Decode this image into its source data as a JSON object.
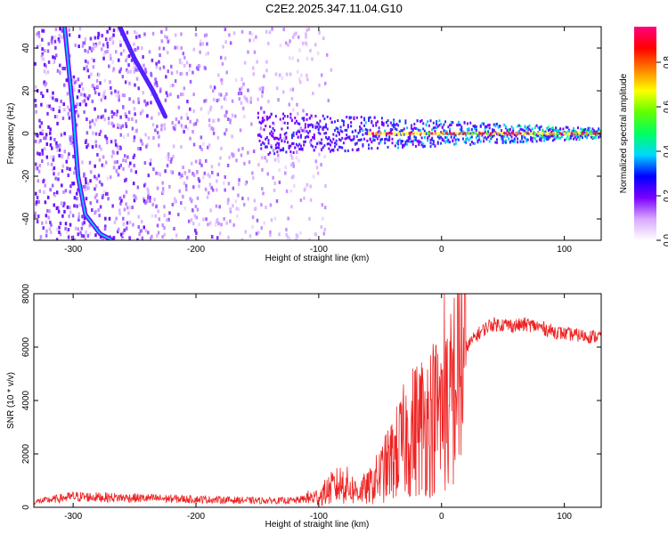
{
  "title": "C2E2.2025.347.11.04.G10",
  "chart_data": [
    {
      "type": "heatmap",
      "name": "spectrogram",
      "xlabel": "Height of straight line (km)",
      "ylabel": "Frequency (Hz)",
      "xlim": [
        -332,
        130
      ],
      "ylim": [
        -50,
        50
      ],
      "xticks": [
        -300,
        -200,
        -100,
        0,
        100
      ],
      "yticks": [
        -40,
        -20,
        0,
        20,
        40
      ],
      "features": [
        {
          "name": "scatter-cloud",
          "x_range": [
            -332,
            -100
          ],
          "y_range": [
            -50,
            50
          ],
          "description": "diffuse purple speckle"
        },
        {
          "name": "steep-track",
          "points": [
            [
              -307,
              50
            ],
            [
              -300,
              10
            ],
            [
              -296,
              -20
            ],
            [
              -290,
              -38
            ],
            [
              -278,
              -47
            ],
            [
              -268,
              -50
            ]
          ]
        },
        {
          "name": "diagonal-track",
          "points": [
            [
              -262,
              50
            ],
            [
              -250,
              35
            ],
            [
              -235,
              20
            ],
            [
              -225,
              8
            ]
          ]
        },
        {
          "name": "central-band",
          "x_range": [
            -150,
            130
          ],
          "frequency": 0
        }
      ]
    },
    {
      "type": "line",
      "name": "snr",
      "xlabel": "Height of straight line (km)",
      "ylabel": "SNR (10 * v/v)",
      "xlim": [
        -332,
        130
      ],
      "ylim": [
        0,
        8000
      ],
      "xticks": [
        -300,
        -200,
        -100,
        0,
        100
      ],
      "yticks": [
        0,
        2000,
        4000,
        6000,
        8000
      ],
      "series": [
        {
          "name": "SNR",
          "color": "#ee2222",
          "x": [
            -332,
            -300,
            -250,
            -200,
            -150,
            -120,
            -100,
            -90,
            -80,
            -70,
            -60,
            -50,
            -40,
            -30,
            -20,
            -10,
            0,
            5,
            10,
            15,
            20,
            30,
            40,
            50,
            60,
            70,
            80,
            90,
            100,
            110,
            120,
            130
          ],
          "y": [
            200,
            400,
            350,
            300,
            250,
            250,
            400,
            700,
            900,
            600,
            700,
            1200,
            1800,
            2500,
            3000,
            3300,
            3600,
            3800,
            4500,
            5500,
            6000,
            6500,
            6850,
            6850,
            6800,
            6850,
            6750,
            6600,
            6500,
            6450,
            6400,
            6400
          ]
        }
      ]
    }
  ],
  "colorbar": {
    "label": "Normalized spectral amplitude",
    "ticks": [
      "0.0",
      "0.2",
      "0.4",
      "0.6",
      "0.8"
    ],
    "colors": [
      "#ffffff",
      "#d8a8ff",
      "#7a00ff",
      "#0000ff",
      "#00d8ff",
      "#00ff60",
      "#60ff00",
      "#ffff00",
      "#ff8000",
      "#ff0000",
      "#ff0080"
    ]
  }
}
